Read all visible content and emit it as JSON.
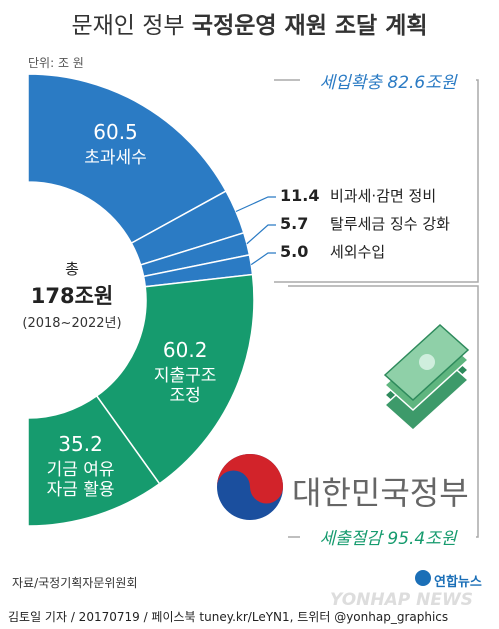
{
  "title_light": "문재인 정부",
  "title_bold": "국정운영 재원 조달 계획",
  "unit": "단위: 조 원",
  "chart_data": {
    "type": "donut",
    "center_label": "총",
    "total_label": "178조원",
    "period": "(2018~2022년)",
    "series": [
      {
        "name": "세입확충 82.6조원",
        "color": "#2b7bc4",
        "categories": [
          "초과세수",
          "비과세·감면 정비",
          "탈루세금 징수 강화",
          "세외수입"
        ],
        "values": [
          60.5,
          11.4,
          5.7,
          5.0
        ],
        "value_labels": [
          "60.5",
          "11.4",
          "5.7",
          "5.0"
        ]
      },
      {
        "name": "세출절감 95.4조원",
        "color": "#169b6e",
        "categories": [
          "지출구조\n조정",
          "기금 여유\n자금 활용"
        ],
        "values": [
          60.2,
          35.2
        ],
        "value_labels": [
          "60.2",
          "35.2"
        ]
      }
    ]
  },
  "gov_logo": "대한민국정부",
  "source": "자료/국정기획자문위원회",
  "credit": "김토일 기자 / 20170719 / 페이스북 tuney.kr/LeYN1, 트위터 @yonhap_graphics",
  "agency": "연합뉴스",
  "watermark": "YONHAP NEWS"
}
